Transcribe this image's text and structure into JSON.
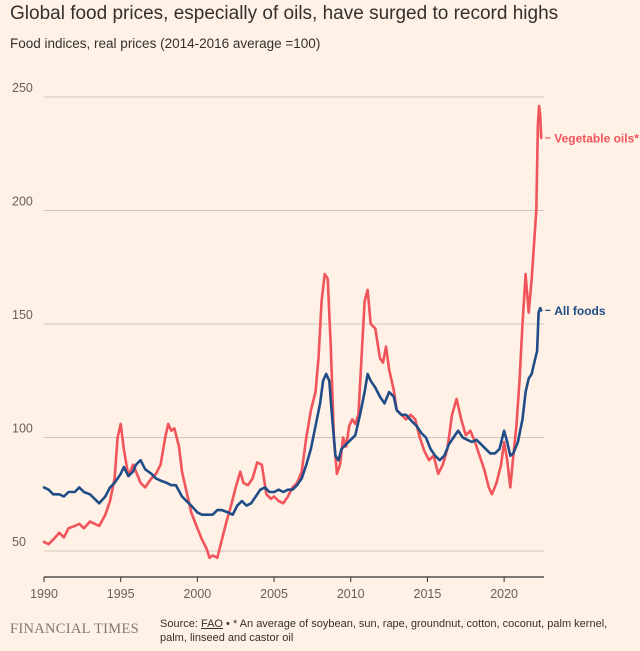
{
  "header": {
    "title": "Global food prices, especially of oils, have surged to record highs",
    "subtitle": "Food indices, real prices (2014-2016 average =100)"
  },
  "footer": {
    "publisher": "FINANCIAL TIMES",
    "source_prefix": "Source: ",
    "source_name": "FAO",
    "source_note": " • * An average of soybean, sun, rape, groundnut, cotton, coconut, palm kernel, palm, linseed and castor oil"
  },
  "chart_data": {
    "type": "line",
    "title": "Global food prices, especially of oils, have surged to record highs",
    "subtitle": "Food indices, real prices (2014-2016 average =100)",
    "xlabel": "",
    "ylabel": "",
    "xlim": [
      1990,
      2022.6
    ],
    "ylim": [
      40,
      260
    ],
    "xticks": [
      1990,
      1995,
      2000,
      2005,
      2010,
      2015,
      2020
    ],
    "yticks": [
      50,
      100,
      150,
      200,
      250
    ],
    "grid": true,
    "series": [
      {
        "name": "Vegetable oils*",
        "color": "#f2545b",
        "points": [
          [
            1990.0,
            54
          ],
          [
            1990.3,
            53
          ],
          [
            1990.6,
            55
          ],
          [
            1991.0,
            58
          ],
          [
            1991.3,
            56
          ],
          [
            1991.6,
            60
          ],
          [
            1992.0,
            61
          ],
          [
            1992.3,
            62
          ],
          [
            1992.6,
            60
          ],
          [
            1993.0,
            63
          ],
          [
            1993.3,
            62
          ],
          [
            1993.6,
            61
          ],
          [
            1994.0,
            66
          ],
          [
            1994.3,
            72
          ],
          [
            1994.6,
            82
          ],
          [
            1994.8,
            100
          ],
          [
            1995.0,
            106
          ],
          [
            1995.2,
            95
          ],
          [
            1995.5,
            83
          ],
          [
            1995.8,
            88
          ],
          [
            1996.0,
            85
          ],
          [
            1996.3,
            80
          ],
          [
            1996.6,
            78
          ],
          [
            1997.0,
            82
          ],
          [
            1997.3,
            84
          ],
          [
            1997.6,
            88
          ],
          [
            1997.9,
            100
          ],
          [
            1998.1,
            106
          ],
          [
            1998.3,
            103
          ],
          [
            1998.5,
            104
          ],
          [
            1998.8,
            96
          ],
          [
            1999.0,
            85
          ],
          [
            1999.3,
            76
          ],
          [
            1999.6,
            67
          ],
          [
            2000.0,
            60
          ],
          [
            2000.3,
            55
          ],
          [
            2000.6,
            51
          ],
          [
            2000.8,
            47
          ],
          [
            2001.0,
            48
          ],
          [
            2001.3,
            47
          ],
          [
            2001.6,
            55
          ],
          [
            2001.9,
            63
          ],
          [
            2002.2,
            70
          ],
          [
            2002.5,
            78
          ],
          [
            2002.8,
            85
          ],
          [
            2003.0,
            80
          ],
          [
            2003.3,
            79
          ],
          [
            2003.6,
            82
          ],
          [
            2003.9,
            89
          ],
          [
            2004.2,
            88
          ],
          [
            2004.5,
            75
          ],
          [
            2004.8,
            73
          ],
          [
            2005.0,
            74
          ],
          [
            2005.3,
            72
          ],
          [
            2005.6,
            71
          ],
          [
            2005.9,
            74
          ],
          [
            2006.2,
            78
          ],
          [
            2006.5,
            80
          ],
          [
            2006.8,
            85
          ],
          [
            2007.1,
            100
          ],
          [
            2007.4,
            112
          ],
          [
            2007.7,
            120
          ],
          [
            2007.9,
            135
          ],
          [
            2008.1,
            160
          ],
          [
            2008.3,
            172
          ],
          [
            2008.5,
            170
          ],
          [
            2008.7,
            140
          ],
          [
            2008.9,
            100
          ],
          [
            2009.1,
            84
          ],
          [
            2009.3,
            88
          ],
          [
            2009.5,
            100
          ],
          [
            2009.7,
            96
          ],
          [
            2009.9,
            105
          ],
          [
            2010.1,
            108
          ],
          [
            2010.3,
            106
          ],
          [
            2010.5,
            110
          ],
          [
            2010.7,
            135
          ],
          [
            2010.9,
            160
          ],
          [
            2011.1,
            165
          ],
          [
            2011.3,
            150
          ],
          [
            2011.6,
            148
          ],
          [
            2011.9,
            135
          ],
          [
            2012.1,
            133
          ],
          [
            2012.3,
            140
          ],
          [
            2012.5,
            130
          ],
          [
            2012.8,
            121
          ],
          [
            2013.0,
            112
          ],
          [
            2013.3,
            110
          ],
          [
            2013.6,
            108
          ],
          [
            2013.9,
            110
          ],
          [
            2014.2,
            108
          ],
          [
            2014.5,
            100
          ],
          [
            2014.8,
            94
          ],
          [
            2015.1,
            90
          ],
          [
            2015.4,
            92
          ],
          [
            2015.7,
            84
          ],
          [
            2016.0,
            88
          ],
          [
            2016.3,
            95
          ],
          [
            2016.6,
            110
          ],
          [
            2016.9,
            117
          ],
          [
            2017.2,
            108
          ],
          [
            2017.5,
            101
          ],
          [
            2017.8,
            103
          ],
          [
            2018.1,
            98
          ],
          [
            2018.4,
            92
          ],
          [
            2018.7,
            86
          ],
          [
            2019.0,
            78
          ],
          [
            2019.2,
            75
          ],
          [
            2019.5,
            80
          ],
          [
            2019.8,
            88
          ],
          [
            2020.0,
            98
          ],
          [
            2020.2,
            90
          ],
          [
            2020.4,
            78
          ],
          [
            2020.6,
            92
          ],
          [
            2020.8,
            105
          ],
          [
            2021.0,
            125
          ],
          [
            2021.2,
            150
          ],
          [
            2021.4,
            172
          ],
          [
            2021.6,
            155
          ],
          [
            2021.8,
            170
          ],
          [
            2021.95,
            185
          ],
          [
            2022.1,
            200
          ],
          [
            2022.2,
            238
          ],
          [
            2022.28,
            246
          ],
          [
            2022.35,
            242
          ],
          [
            2022.42,
            232
          ]
        ]
      },
      {
        "name": "All foods",
        "color": "#204d88",
        "points": [
          [
            1990.0,
            78
          ],
          [
            1990.3,
            77
          ],
          [
            1990.6,
            75
          ],
          [
            1991.0,
            75
          ],
          [
            1991.3,
            74
          ],
          [
            1991.6,
            76
          ],
          [
            1992.0,
            76
          ],
          [
            1992.3,
            78
          ],
          [
            1992.6,
            76
          ],
          [
            1993.0,
            75
          ],
          [
            1993.3,
            73
          ],
          [
            1993.6,
            71
          ],
          [
            1994.0,
            74
          ],
          [
            1994.3,
            78
          ],
          [
            1994.6,
            80
          ],
          [
            1995.0,
            84
          ],
          [
            1995.2,
            87
          ],
          [
            1995.5,
            83
          ],
          [
            1995.8,
            85
          ],
          [
            1996.0,
            88
          ],
          [
            1996.3,
            90
          ],
          [
            1996.6,
            86
          ],
          [
            1997.0,
            84
          ],
          [
            1997.3,
            82
          ],
          [
            1997.6,
            81
          ],
          [
            1998.0,
            80
          ],
          [
            1998.3,
            79
          ],
          [
            1998.6,
            79
          ],
          [
            1999.0,
            74
          ],
          [
            1999.3,
            72
          ],
          [
            1999.6,
            70
          ],
          [
            2000.0,
            67
          ],
          [
            2000.3,
            66
          ],
          [
            2000.6,
            66
          ],
          [
            2001.0,
            66
          ],
          [
            2001.3,
            68
          ],
          [
            2001.6,
            68
          ],
          [
            2002.0,
            67
          ],
          [
            2002.3,
            66
          ],
          [
            2002.6,
            70
          ],
          [
            2002.9,
            72
          ],
          [
            2003.2,
            70
          ],
          [
            2003.5,
            71
          ],
          [
            2003.8,
            74
          ],
          [
            2004.1,
            77
          ],
          [
            2004.4,
            78
          ],
          [
            2004.7,
            76
          ],
          [
            2005.0,
            76
          ],
          [
            2005.3,
            77
          ],
          [
            2005.6,
            76
          ],
          [
            2005.9,
            77
          ],
          [
            2006.2,
            77
          ],
          [
            2006.5,
            79
          ],
          [
            2006.8,
            82
          ],
          [
            2007.1,
            88
          ],
          [
            2007.4,
            95
          ],
          [
            2007.7,
            105
          ],
          [
            2008.0,
            115
          ],
          [
            2008.2,
            125
          ],
          [
            2008.4,
            128
          ],
          [
            2008.6,
            125
          ],
          [
            2008.8,
            108
          ],
          [
            2009.0,
            92
          ],
          [
            2009.2,
            90
          ],
          [
            2009.4,
            95
          ],
          [
            2009.7,
            97
          ],
          [
            2010.0,
            99
          ],
          [
            2010.3,
            101
          ],
          [
            2010.6,
            110
          ],
          [
            2010.9,
            120
          ],
          [
            2011.1,
            128
          ],
          [
            2011.3,
            125
          ],
          [
            2011.6,
            122
          ],
          [
            2011.9,
            118
          ],
          [
            2012.2,
            115
          ],
          [
            2012.5,
            120
          ],
          [
            2012.8,
            118
          ],
          [
            2013.0,
            112
          ],
          [
            2013.3,
            110
          ],
          [
            2013.6,
            110
          ],
          [
            2014.0,
            107
          ],
          [
            2014.3,
            105
          ],
          [
            2014.6,
            102
          ],
          [
            2014.9,
            100
          ],
          [
            2015.2,
            95
          ],
          [
            2015.5,
            92
          ],
          [
            2015.8,
            90
          ],
          [
            2016.1,
            92
          ],
          [
            2016.4,
            97
          ],
          [
            2016.7,
            100
          ],
          [
            2017.0,
            103
          ],
          [
            2017.3,
            100
          ],
          [
            2017.6,
            99
          ],
          [
            2017.9,
            98
          ],
          [
            2018.2,
            99
          ],
          [
            2018.5,
            97
          ],
          [
            2018.8,
            95
          ],
          [
            2019.1,
            93
          ],
          [
            2019.4,
            93
          ],
          [
            2019.7,
            95
          ],
          [
            2020.0,
            103
          ],
          [
            2020.2,
            98
          ],
          [
            2020.4,
            92
          ],
          [
            2020.6,
            93
          ],
          [
            2020.9,
            98
          ],
          [
            2021.2,
            108
          ],
          [
            2021.4,
            120
          ],
          [
            2021.6,
            126
          ],
          [
            2021.8,
            128
          ],
          [
            2022.0,
            134
          ],
          [
            2022.15,
            138
          ],
          [
            2022.25,
            155
          ],
          [
            2022.35,
            157
          ],
          [
            2022.42,
            156
          ]
        ]
      }
    ],
    "labels": [
      {
        "series": "Vegetable oils*",
        "text": "Vegetable oils*"
      },
      {
        "series": "All foods",
        "text": "All foods"
      }
    ]
  }
}
